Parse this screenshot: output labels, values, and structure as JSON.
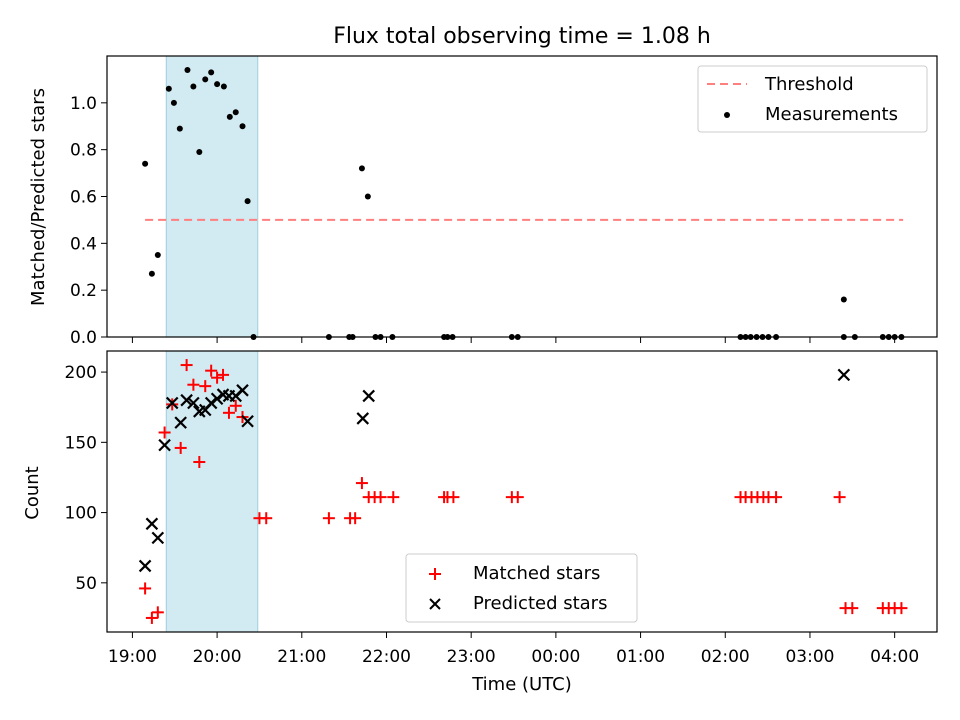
{
  "figure": {
    "title": "Flux total observing time = 1.08 h",
    "xlabel": "Time (UTC)",
    "x_tick_labels": [
      "19:00",
      "20:00",
      "21:00",
      "22:00",
      "23:00",
      "00:00",
      "01:00",
      "02:00",
      "03:00",
      "04:00"
    ]
  },
  "colors": {
    "threshold": "#ff7f7f",
    "measurement": "#000000",
    "matched": "#ff0000",
    "predicted": "#000000",
    "observing_window": "#add8e6"
  },
  "chart_data": [
    {
      "type": "scatter",
      "title": "Flux total observing time = 1.08 h",
      "xlabel": "Time (UTC)",
      "ylabel": "Matched/Predicted stars",
      "x_unit": "hours since 19:00 UTC",
      "xlim": [
        -0.3,
        9.5
      ],
      "ylim": [
        0,
        1.2
      ],
      "y_tick_labels": [
        "0.0",
        "0.2",
        "0.4",
        "0.6",
        "0.8",
        "1.0"
      ],
      "shaded_interval": {
        "x": [
          0.4,
          1.48
        ]
      },
      "threshold": {
        "name": "Threshold",
        "y": 0.5,
        "x": [
          0.15,
          9.1
        ]
      },
      "legend": {
        "position": "top-right",
        "entries": [
          "Threshold",
          "Measurements"
        ]
      },
      "series": [
        {
          "name": "Measurements",
          "points": [
            [
              0.15,
              0.74
            ],
            [
              0.23,
              0.27
            ],
            [
              0.3,
              0.35
            ],
            [
              0.43,
              1.06
            ],
            [
              0.49,
              1.0
            ],
            [
              0.56,
              0.89
            ],
            [
              0.65,
              1.14
            ],
            [
              0.72,
              1.07
            ],
            [
              0.79,
              0.79
            ],
            [
              0.86,
              1.1
            ],
            [
              0.93,
              1.13
            ],
            [
              1.0,
              1.08
            ],
            [
              1.08,
              1.07
            ],
            [
              1.15,
              0.94
            ],
            [
              1.22,
              0.96
            ],
            [
              1.3,
              0.9
            ],
            [
              1.36,
              0.58
            ],
            [
              1.43,
              0.0
            ],
            [
              2.32,
              0.0
            ],
            [
              2.56,
              0.0
            ],
            [
              2.6,
              0.0
            ],
            [
              2.71,
              0.72
            ],
            [
              2.78,
              0.6
            ],
            [
              2.87,
              0.0
            ],
            [
              2.93,
              0.0
            ],
            [
              3.07,
              0.0
            ],
            [
              3.68,
              0.0
            ],
            [
              3.72,
              0.0
            ],
            [
              3.78,
              0.0
            ],
            [
              4.48,
              0.0
            ],
            [
              4.55,
              0.0
            ],
            [
              7.18,
              0.0
            ],
            [
              7.24,
              0.0
            ],
            [
              7.3,
              0.0
            ],
            [
              7.37,
              0.0
            ],
            [
              7.44,
              0.0
            ],
            [
              7.51,
              0.0
            ],
            [
              7.6,
              0.0
            ],
            [
              8.4,
              0.16
            ],
            [
              8.4,
              0.0
            ],
            [
              8.53,
              0.0
            ],
            [
              8.86,
              0.0
            ],
            [
              8.93,
              0.0
            ],
            [
              9.0,
              0.0
            ],
            [
              9.08,
              0.0
            ]
          ]
        }
      ]
    },
    {
      "type": "scatter",
      "xlabel": "Time (UTC)",
      "ylabel": "Count",
      "x_unit": "hours since 19:00 UTC",
      "xlim": [
        -0.3,
        9.5
      ],
      "ylim": [
        15,
        215
      ],
      "y_tick_labels": [
        "50",
        "100",
        "150",
        "200"
      ],
      "shaded_interval": {
        "x": [
          0.4,
          1.48
        ]
      },
      "legend": {
        "position": "lower-center",
        "entries": [
          "Matched stars",
          "Predicted stars"
        ]
      },
      "series": [
        {
          "name": "Matched stars",
          "marker": "plus",
          "points": [
            [
              0.15,
              46
            ],
            [
              0.23,
              25
            ],
            [
              0.3,
              29
            ],
            [
              0.38,
              157
            ],
            [
              0.47,
              177
            ],
            [
              0.57,
              146
            ],
            [
              0.64,
              205
            ],
            [
              0.72,
              191
            ],
            [
              0.79,
              136
            ],
            [
              0.86,
              190
            ],
            [
              0.93,
              201
            ],
            [
              1.0,
              196
            ],
            [
              1.07,
              198
            ],
            [
              1.14,
              171
            ],
            [
              1.22,
              176
            ],
            [
              1.3,
              168
            ],
            [
              1.5,
              96
            ],
            [
              1.58,
              96
            ],
            [
              2.32,
              96
            ],
            [
              2.57,
              96
            ],
            [
              2.63,
              96
            ],
            [
              2.71,
              121
            ],
            [
              2.79,
              111
            ],
            [
              2.86,
              111
            ],
            [
              2.93,
              111
            ],
            [
              3.08,
              111
            ],
            [
              3.68,
              111
            ],
            [
              3.72,
              111
            ],
            [
              3.79,
              111
            ],
            [
              4.48,
              111
            ],
            [
              4.55,
              111
            ],
            [
              7.18,
              111
            ],
            [
              7.24,
              111
            ],
            [
              7.31,
              111
            ],
            [
              7.38,
              111
            ],
            [
              7.45,
              111
            ],
            [
              7.51,
              111
            ],
            [
              7.6,
              111
            ],
            [
              8.35,
              111
            ],
            [
              8.42,
              32
            ],
            [
              8.5,
              32
            ],
            [
              8.86,
              32
            ],
            [
              8.93,
              32
            ],
            [
              9.0,
              32
            ],
            [
              9.08,
              32
            ]
          ]
        },
        {
          "name": "Predicted stars",
          "marker": "x",
          "points": [
            [
              0.15,
              62
            ],
            [
              0.23,
              92
            ],
            [
              0.3,
              82
            ],
            [
              0.38,
              148
            ],
            [
              0.47,
              178
            ],
            [
              0.57,
              164
            ],
            [
              0.64,
              180
            ],
            [
              0.72,
              178
            ],
            [
              0.79,
              172
            ],
            [
              0.86,
              173
            ],
            [
              0.93,
              178
            ],
            [
              1.0,
              181
            ],
            [
              1.07,
              184
            ],
            [
              1.14,
              183
            ],
            [
              1.22,
              183
            ],
            [
              1.3,
              187
            ],
            [
              1.36,
              165
            ],
            [
              2.72,
              167
            ],
            [
              2.79,
              183
            ],
            [
              8.4,
              198
            ]
          ]
        }
      ]
    }
  ]
}
